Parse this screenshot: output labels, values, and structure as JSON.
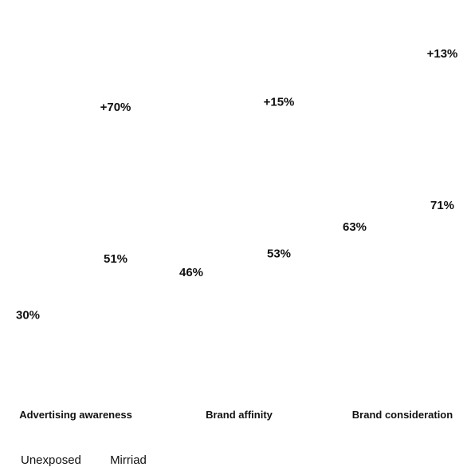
{
  "chart_data": {
    "type": "bar",
    "categories": [
      "Advertising awareness",
      "Brand affinity",
      "Brand consideration"
    ],
    "series": [
      {
        "name": "Unexposed",
        "values": [
          30,
          46,
          63
        ],
        "labels": [
          "30%",
          "46%",
          "63%"
        ],
        "color": "#ffffff"
      },
      {
        "name": "Mirriad",
        "values": [
          51,
          53,
          71
        ],
        "labels": [
          "51%",
          "53%",
          "71%"
        ],
        "color": "#ffffff"
      }
    ],
    "lifts": [
      "+70%",
      "+15%",
      "+13%"
    ],
    "ylim": [
      0,
      100
    ],
    "legend": "bottom-left",
    "grid": false,
    "title": "",
    "xlabel": "",
    "ylabel": ""
  }
}
